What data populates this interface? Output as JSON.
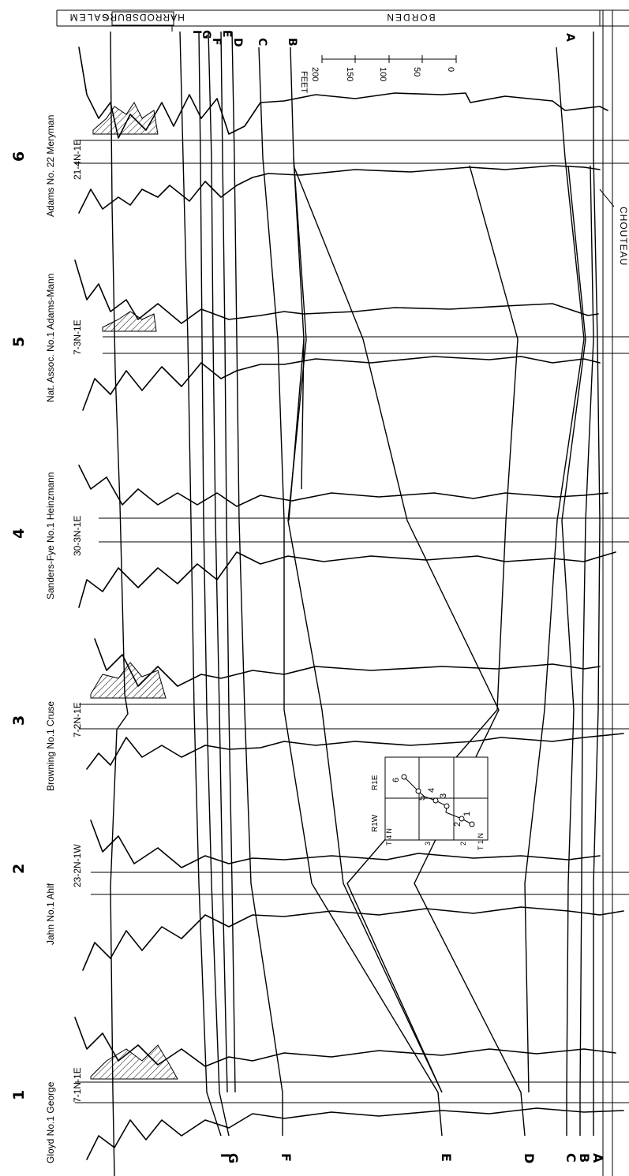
{
  "formations_top": {
    "harrodsburg": "HARRODSBURG",
    "salem": "SALEM",
    "borden": "BORDEN",
    "chouteau": "CHOUTEAU"
  },
  "wells": [
    {
      "number": "1",
      "name": "Gloyd No.1 George",
      "location": "7-1N-1E"
    },
    {
      "number": "2",
      "name": "Jahn No.1 Ahlf",
      "location": "23-2N-1W"
    },
    {
      "number": "3",
      "name": "Browning No.1 Cruse",
      "location": "7-2N-1E"
    },
    {
      "number": "4",
      "name": "Sanders-Fye No.1 Heinzmann",
      "location": "30-3N-1E"
    },
    {
      "number": "5",
      "name": "Nat. Assoc. No.1 Adams-Mann",
      "location": "7-3N-1E"
    },
    {
      "number": "6",
      "name": "Adams No. 22 Meryman",
      "location": "21-4N-1E"
    }
  ],
  "markers": [
    "A",
    "B",
    "C",
    "D",
    "E",
    "F",
    "G",
    "I"
  ],
  "scale": {
    "unit": "FEET",
    "ticks": [
      "200",
      "150",
      "100",
      "50",
      "0"
    ]
  },
  "index_map": {
    "range_labels": [
      "R1W",
      "R1E"
    ],
    "township_labels": [
      "T 4 N",
      "3",
      "2",
      "T 1 N"
    ],
    "well_labels": [
      "6",
      "5",
      "4",
      "3",
      "2",
      "1"
    ]
  }
}
